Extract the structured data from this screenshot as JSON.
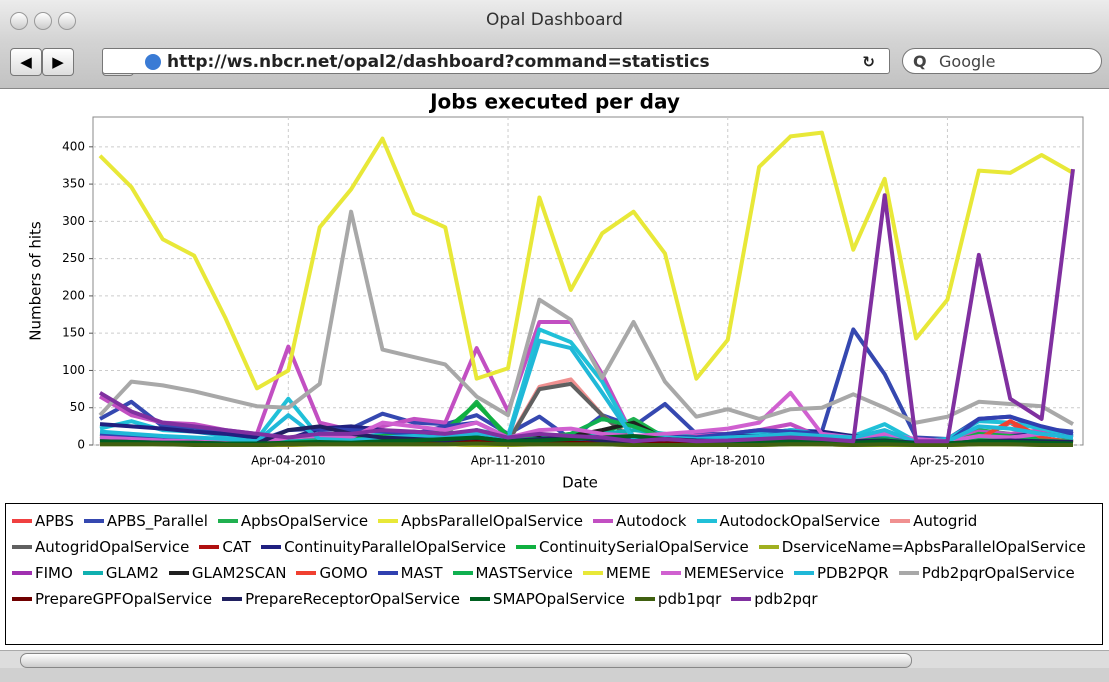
{
  "window": {
    "title": "Opal Dashboard",
    "url": "http://ws.nbcr.net/opal2/dashboard?command=statistics",
    "search_placeholder": "Google"
  },
  "chart_data": {
    "type": "line",
    "title": "Jobs executed per day",
    "x_label": "Date",
    "y_label": "Numbers of hits",
    "grid": true,
    "x": [
      "2010-03-29",
      "2010-03-30",
      "2010-03-31",
      "2010-04-01",
      "2010-04-02",
      "2010-04-03",
      "2010-04-04",
      "2010-04-05",
      "2010-04-06",
      "2010-04-07",
      "2010-04-08",
      "2010-04-09",
      "2010-04-10",
      "2010-04-11",
      "2010-04-12",
      "2010-04-13",
      "2010-04-14",
      "2010-04-15",
      "2010-04-16",
      "2010-04-17",
      "2010-04-18",
      "2010-04-19",
      "2010-04-20",
      "2010-04-21",
      "2010-04-22",
      "2010-04-23",
      "2010-04-24",
      "2010-04-25",
      "2010-04-26",
      "2010-04-27",
      "2010-04-28",
      "2010-04-29"
    ],
    "xlim": [
      "2010-03-29",
      "2010-04-29"
    ],
    "xticks": [
      {
        "value": "2010-04-04",
        "label": "Apr-04-2010"
      },
      {
        "value": "2010-04-11",
        "label": "Apr-11-2010"
      },
      {
        "value": "2010-04-18",
        "label": "Apr-18-2010"
      },
      {
        "value": "2010-04-25",
        "label": "Apr-25-2010"
      }
    ],
    "ylim": [
      0,
      440
    ],
    "yticks": [
      0,
      50,
      100,
      150,
      200,
      250,
      300,
      350,
      400
    ],
    "series": [
      {
        "name": "APBS",
        "color": "#f04040",
        "values": [
          5,
          3,
          2,
          2,
          1,
          0,
          0,
          2,
          3,
          2,
          1,
          1,
          0,
          0,
          2,
          3,
          1,
          0,
          1,
          0,
          0,
          0,
          2,
          1,
          0,
          5,
          0,
          0,
          10,
          30,
          5,
          2
        ]
      },
      {
        "name": "APBS_Parallel",
        "color": "#3548b0",
        "values": [
          35,
          58,
          25,
          22,
          18,
          12,
          8,
          20,
          22,
          42,
          30,
          28,
          40,
          15,
          38,
          8,
          40,
          25,
          55,
          15,
          15,
          15,
          20,
          18,
          155,
          95,
          10,
          8,
          35,
          38,
          22,
          18
        ]
      },
      {
        "name": "ApbsOpalService",
        "color": "#20b050",
        "values": [
          10,
          8,
          5,
          5,
          4,
          3,
          2,
          5,
          6,
          8,
          10,
          12,
          58,
          8,
          10,
          12,
          15,
          35,
          10,
          8,
          6,
          5,
          8,
          6,
          5,
          10,
          3,
          2,
          20,
          15,
          8,
          5
        ]
      },
      {
        "name": "ApbsParallelOpalService",
        "color": "#e8e838",
        "values": [
          2,
          2,
          1,
          1,
          1,
          0,
          0,
          1,
          1,
          1,
          1,
          1,
          0,
          0,
          1,
          1,
          1,
          1,
          0,
          0,
          0,
          0,
          1,
          1,
          0,
          0,
          0,
          0,
          1,
          1,
          1,
          0
        ]
      },
      {
        "name": "Autodock",
        "color": "#c24fc2",
        "values": [
          65,
          40,
          30,
          28,
          20,
          15,
          132,
          30,
          20,
          25,
          35,
          30,
          130,
          45,
          165,
          165,
          95,
          10,
          15,
          12,
          15,
          20,
          28,
          10,
          8,
          12,
          6,
          5,
          18,
          15,
          20,
          15
        ]
      },
      {
        "name": "AutodockOpalService",
        "color": "#20c0d8",
        "values": [
          22,
          32,
          20,
          18,
          12,
          8,
          62,
          10,
          8,
          15,
          18,
          12,
          20,
          12,
          155,
          138,
          85,
          10,
          12,
          10,
          12,
          15,
          20,
          15,
          12,
          28,
          5,
          8,
          32,
          30,
          22,
          12
        ]
      },
      {
        "name": "Autogrid",
        "color": "#f09090",
        "values": [
          5,
          4,
          3,
          2,
          2,
          1,
          3,
          4,
          3,
          5,
          8,
          10,
          15,
          5,
          78,
          88,
          40,
          8,
          5,
          4,
          3,
          3,
          5,
          4,
          3,
          8,
          2,
          2,
          6,
          5,
          4,
          3
        ]
      },
      {
        "name": "AutogridOpalService",
        "color": "#606060",
        "values": [
          3,
          2,
          2,
          1,
          1,
          1,
          2,
          3,
          2,
          3,
          5,
          8,
          12,
          4,
          75,
          82,
          40,
          5,
          3,
          2,
          2,
          2,
          3,
          2,
          2,
          5,
          1,
          1,
          4,
          3,
          2,
          2
        ]
      },
      {
        "name": "CAT",
        "color": "#b01010",
        "values": [
          12,
          8,
          5,
          4,
          3,
          2,
          2,
          3,
          2,
          3,
          2,
          2,
          3,
          2,
          2,
          3,
          2,
          1,
          2,
          1,
          1,
          1,
          2,
          1,
          1,
          2,
          1,
          1,
          2,
          1,
          1,
          1
        ]
      },
      {
        "name": "ContinuityParallelOpalService",
        "color": "#202080",
        "values": [
          28,
          25,
          22,
          18,
          15,
          10,
          8,
          22,
          25,
          20,
          15,
          10,
          10,
          5,
          8,
          6,
          12,
          10,
          8,
          10,
          12,
          12,
          15,
          18,
          12,
          10,
          8,
          5,
          10,
          12,
          15,
          10
        ]
      },
      {
        "name": "ContinuitySerialOpalService",
        "color": "#10b040",
        "values": [
          15,
          12,
          10,
          8,
          6,
          5,
          4,
          8,
          10,
          12,
          15,
          20,
          55,
          12,
          10,
          15,
          18,
          30,
          12,
          8,
          6,
          5,
          8,
          6,
          5,
          10,
          3,
          2,
          15,
          12,
          8,
          5
        ]
      },
      {
        "name": "DserviceName=ApbsParallelOpalService",
        "color": "#a0b020",
        "values": [
          1,
          1,
          1,
          1,
          0,
          0,
          0,
          1,
          1,
          1,
          1,
          1,
          0,
          0,
          1,
          1,
          1,
          0,
          0,
          0,
          0,
          0,
          1,
          1,
          0,
          0,
          0,
          0,
          1,
          1,
          0,
          0
        ]
      },
      {
        "name": "FIMO",
        "color": "#a030b0",
        "values": [
          8,
          6,
          5,
          4,
          3,
          2,
          4,
          6,
          5,
          8,
          10,
          8,
          15,
          5,
          12,
          10,
          8,
          5,
          6,
          4,
          5,
          8,
          10,
          5,
          6,
          8,
          3,
          2,
          6,
          5,
          4,
          3
        ]
      },
      {
        "name": "GLAM2",
        "color": "#10b0b0",
        "values": [
          10,
          8,
          6,
          5,
          4,
          3,
          5,
          6,
          5,
          6,
          8,
          10,
          12,
          8,
          10,
          12,
          15,
          20,
          15,
          10,
          8,
          6,
          10,
          8,
          6,
          10,
          4,
          3,
          10,
          8,
          6,
          5
        ]
      },
      {
        "name": "GLAM2SCAN",
        "color": "#202020",
        "values": [
          2,
          2,
          1,
          1,
          1,
          0,
          1,
          2,
          2,
          3,
          5,
          6,
          8,
          3,
          10,
          12,
          20,
          30,
          8,
          3,
          2,
          2,
          3,
          2,
          2,
          3,
          1,
          1,
          2,
          2,
          1,
          1
        ]
      },
      {
        "name": "GOMO",
        "color": "#f04030",
        "values": [
          3,
          2,
          2,
          1,
          1,
          1,
          1,
          2,
          2,
          2,
          3,
          3,
          4,
          2,
          3,
          3,
          2,
          2,
          2,
          1,
          1,
          1,
          2,
          2,
          1,
          3,
          1,
          1,
          8,
          32,
          10,
          3
        ]
      },
      {
        "name": "MAST",
        "color": "#3040b0",
        "values": [
          15,
          12,
          10,
          8,
          6,
          5,
          20,
          22,
          20,
          18,
          15,
          25,
          30,
          10,
          15,
          5,
          12,
          10,
          12,
          10,
          15,
          20,
          18,
          15,
          10,
          8,
          5,
          3,
          35,
          38,
          25,
          15
        ]
      },
      {
        "name": "MASTService",
        "color": "#10b050",
        "values": [
          8,
          6,
          5,
          4,
          3,
          2,
          3,
          5,
          4,
          5,
          6,
          8,
          20,
          10,
          8,
          15,
          35,
          25,
          10,
          8,
          6,
          5,
          8,
          6,
          5,
          8,
          3,
          2,
          10,
          8,
          6,
          4
        ]
      },
      {
        "name": "MEME",
        "color": "#e8e838",
        "values": [
          388,
          346,
          276,
          254,
          170,
          76,
          100,
          292,
          343,
          411,
          311,
          292,
          89,
          103,
          332,
          208,
          284,
          313,
          257,
          89,
          141,
          373,
          414,
          419,
          262,
          357,
          143,
          195,
          368,
          365,
          389,
          365
        ]
      },
      {
        "name": "MEMEService",
        "color": "#d060d0",
        "values": [
          10,
          8,
          6,
          5,
          4,
          3,
          10,
          12,
          10,
          30,
          25,
          20,
          30,
          10,
          20,
          22,
          15,
          12,
          15,
          18,
          22,
          30,
          70,
          15,
          10,
          15,
          8,
          5,
          12,
          10,
          15,
          10
        ]
      },
      {
        "name": "PDB2PQR",
        "color": "#20b8d8",
        "values": [
          18,
          15,
          12,
          10,
          8,
          5,
          40,
          8,
          6,
          10,
          12,
          10,
          15,
          8,
          140,
          130,
          70,
          8,
          10,
          8,
          10,
          12,
          15,
          12,
          10,
          20,
          4,
          5,
          25,
          22,
          15,
          10
        ]
      },
      {
        "name": "Pdb2pqrOpalService",
        "color": "#a8a8a8",
        "values": [
          40,
          85,
          80,
          72,
          62,
          52,
          50,
          82,
          313,
          128,
          118,
          108,
          65,
          40,
          195,
          168,
          90,
          165,
          85,
          38,
          48,
          35,
          48,
          50,
          68,
          50,
          30,
          38,
          58,
          55,
          52,
          28
        ]
      },
      {
        "name": "PrepareGPFOpalService",
        "color": "#700000",
        "values": [
          3,
          2,
          2,
          1,
          1,
          1,
          2,
          3,
          2,
          2,
          3,
          3,
          4,
          2,
          3,
          3,
          2,
          2,
          2,
          1,
          1,
          1,
          2,
          2,
          1,
          2,
          1,
          1,
          2,
          2,
          1,
          1
        ]
      },
      {
        "name": "PrepareReceptorOpalService",
        "color": "#202060",
        "values": [
          5,
          4,
          3,
          3,
          2,
          2,
          20,
          25,
          15,
          10,
          8,
          6,
          10,
          5,
          8,
          10,
          6,
          5,
          8,
          6,
          5,
          6,
          8,
          6,
          5,
          6,
          3,
          2,
          5,
          6,
          5,
          4
        ]
      },
      {
        "name": "SMAPOpalService",
        "color": "#006020",
        "values": [
          5,
          4,
          3,
          3,
          2,
          2,
          3,
          4,
          3,
          5,
          6,
          8,
          10,
          5,
          6,
          8,
          10,
          12,
          8,
          5,
          4,
          3,
          5,
          4,
          3,
          5,
          2,
          2,
          5,
          4,
          3,
          2
        ]
      },
      {
        "name": "pdb1pqr",
        "color": "#406010",
        "values": [
          1,
          1,
          1,
          0,
          0,
          0,
          1,
          1,
          1,
          1,
          1,
          1,
          2,
          1,
          1,
          1,
          1,
          0,
          0,
          0,
          0,
          0,
          1,
          1,
          0,
          1,
          0,
          0,
          1,
          1,
          0,
          0
        ]
      },
      {
        "name": "pdb2pqr",
        "color": "#8030a0",
        "values": [
          70,
          45,
          30,
          25,
          20,
          15,
          10,
          15,
          15,
          20,
          18,
          15,
          20,
          10,
          15,
          12,
          10,
          5,
          8,
          5,
          6,
          8,
          10,
          8,
          5,
          335,
          5,
          5,
          255,
          62,
          35,
          370
        ]
      }
    ]
  }
}
